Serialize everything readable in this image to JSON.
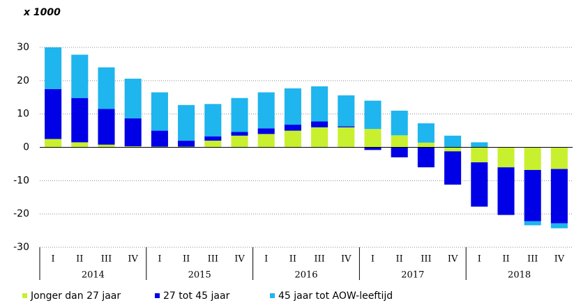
{
  "chart_data": {
    "type": "stacked-bar",
    "unit_label": "x 1000",
    "categories": [
      "I",
      "II",
      "III",
      "IV",
      "I",
      "II",
      "III",
      "IV",
      "I",
      "II",
      "III",
      "IV",
      "I",
      "II",
      "III",
      "IV",
      "I",
      "II",
      "III",
      "IV"
    ],
    "years": [
      "2014",
      "2015",
      "2016",
      "2017",
      "2018"
    ],
    "series": [
      {
        "name": "Jonger dan 27 jaar",
        "color": "#c8f02f",
        "values": [
          2.5,
          1.5,
          0.8,
          0.3,
          0.2,
          0.2,
          2,
          3.5,
          4,
          5,
          6,
          6,
          5.5,
          3.6,
          1.4,
          -1.2,
          -4.5,
          -6,
          -6.8,
          -6.5
        ]
      },
      {
        "name": "27 tot 45 jaar",
        "color": "#0000e6",
        "values": [
          15,
          13.3,
          10.7,
          8.4,
          4.8,
          1.8,
          1.3,
          1.1,
          1.7,
          1.8,
          1.8,
          0.3,
          -0.8,
          -3,
          -6,
          -10,
          -13.3,
          -14.3,
          -15.4,
          -16.3
        ]
      },
      {
        "name": "45 jaar tot AOW-leeftijd",
        "color": "#1fb5ee",
        "values": [
          12.5,
          13,
          12.5,
          11.9,
          11.5,
          10.7,
          9.7,
          10.2,
          10.8,
          10.9,
          10.5,
          9.3,
          8.5,
          7.4,
          5.8,
          3.5,
          1.5,
          0,
          -1.2,
          -1.5
        ]
      }
    ],
    "ylim": [
      -30,
      30
    ],
    "yticks": [
      -30,
      -20,
      -10,
      0,
      10,
      20,
      30
    ],
    "grid": true
  }
}
